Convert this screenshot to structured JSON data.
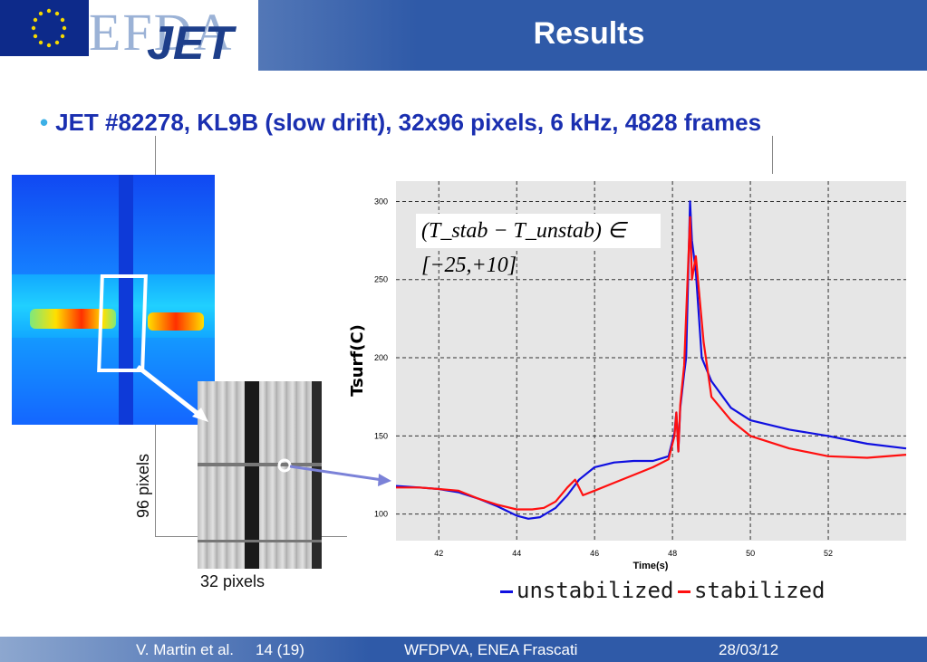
{
  "header": {
    "logo_efda": "EFDA",
    "logo_jet": "JET",
    "title": "Results"
  },
  "bullet": "JET #82278, KL9B (slow drift), 32x96 pixels, 6 kHz, 4828 frames",
  "images": {
    "height_label": "96 pixels",
    "width_label": "32 pixels"
  },
  "equation": "(T_stab − T_unstab) ∈ [−25,+10]",
  "legend": {
    "unstabilized": "unstabilized",
    "stabilized": "stabilized"
  },
  "footer": {
    "author": "V. Martin et al.",
    "page": "14 (19)",
    "event": "WFDPVA, ENEA Frascati",
    "date": "28/03/12"
  },
  "colors": {
    "unstabilized": "#1010e0",
    "stabilized": "#ff1010",
    "title_text": "#1a2fb0"
  },
  "chart_data": {
    "type": "line",
    "xlabel": "Time(s)",
    "ylabel": "Tsurf(C)",
    "xlim": [
      40.9,
      54.0
    ],
    "ylim": [
      83,
      313
    ],
    "xticks": [
      42,
      44,
      46,
      48,
      50,
      52
    ],
    "yticks": [
      100,
      150,
      200,
      250,
      300
    ],
    "grid": true,
    "series": [
      {
        "name": "unstabilized",
        "x": [
          40.9,
          41.5,
          42.0,
          42.5,
          43.0,
          43.5,
          44.0,
          44.3,
          44.6,
          45.0,
          45.3,
          45.6,
          46.0,
          46.5,
          47.0,
          47.5,
          47.9,
          48.05,
          48.1,
          48.15,
          48.2,
          48.3,
          48.35,
          48.45,
          48.5,
          48.6,
          48.75,
          49.0,
          49.5,
          50.0,
          51.0,
          52.0,
          53.0,
          54.0
        ],
        "y": [
          118,
          117,
          116,
          114,
          110,
          105,
          99,
          97,
          98,
          104,
          112,
          122,
          130,
          133,
          134,
          134,
          137,
          152,
          165,
          140,
          168,
          190,
          200,
          300,
          275,
          255,
          200,
          185,
          168,
          160,
          154,
          150,
          145,
          142
        ]
      },
      {
        "name": "stabilized",
        "x": [
          40.9,
          41.5,
          42.0,
          42.5,
          43.0,
          43.5,
          44.0,
          44.4,
          44.7,
          45.0,
          45.3,
          45.5,
          45.7,
          46.0,
          46.5,
          47.0,
          47.5,
          47.9,
          48.05,
          48.1,
          48.15,
          48.2,
          48.3,
          48.45,
          48.5,
          48.6,
          48.8,
          49.0,
          49.5,
          50.0,
          51.0,
          52.0,
          53.0,
          54.0
        ],
        "y": [
          117,
          117,
          116,
          115,
          110,
          106,
          103,
          103,
          104,
          108,
          117,
          122,
          112,
          115,
          120,
          125,
          130,
          135,
          150,
          165,
          140,
          170,
          195,
          290,
          250,
          265,
          210,
          175,
          160,
          150,
          142,
          137,
          136,
          138
        ]
      }
    ]
  }
}
